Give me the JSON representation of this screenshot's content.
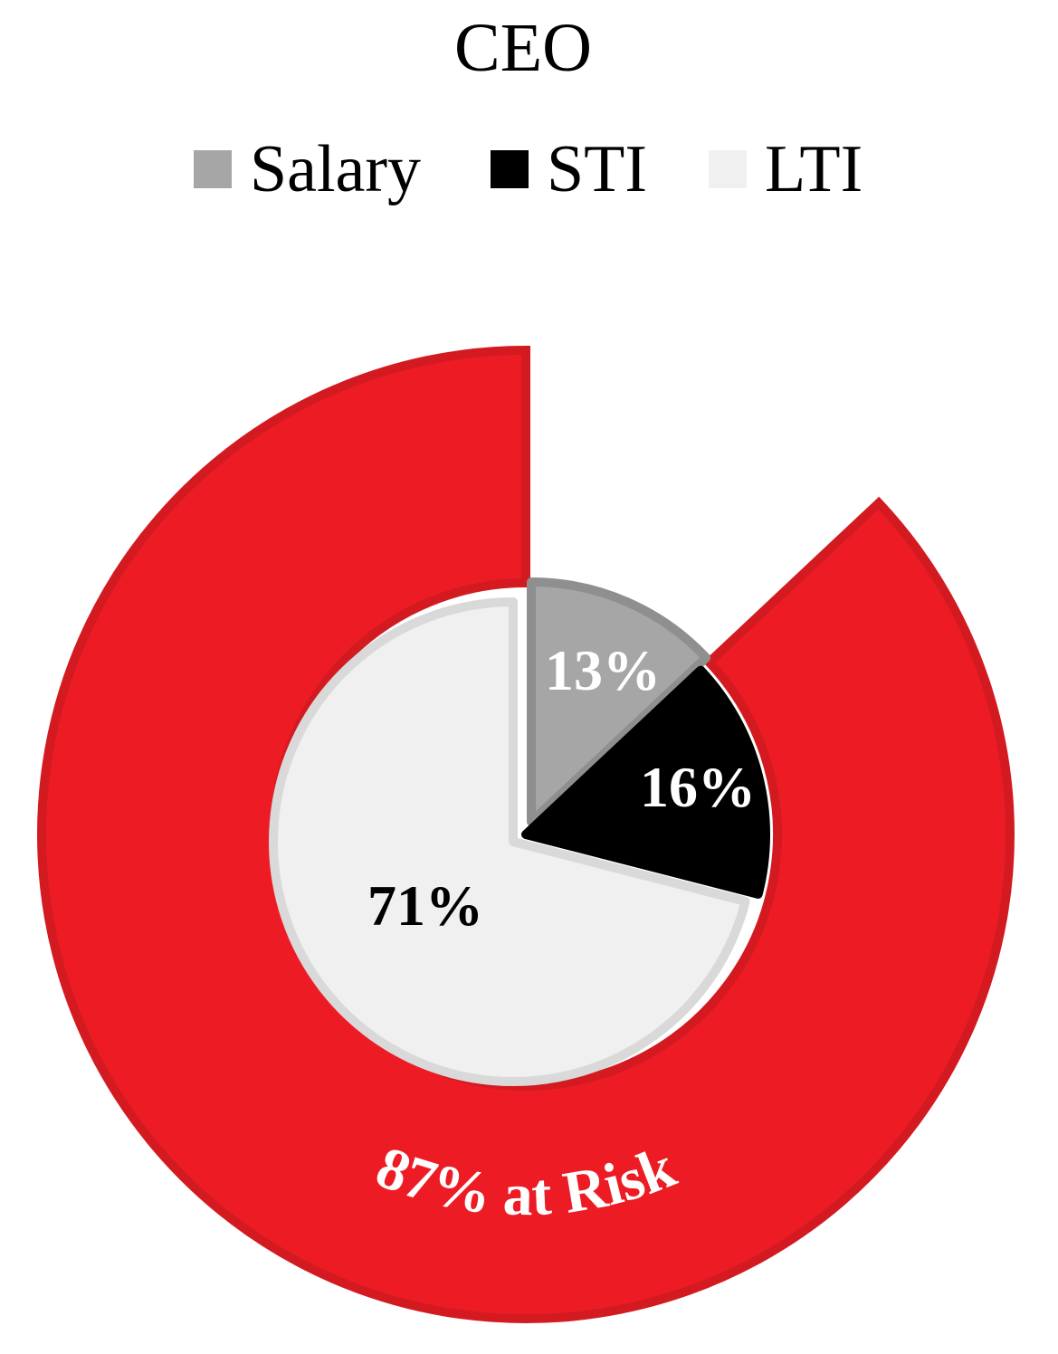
{
  "chart_data": {
    "type": "pie",
    "title": "CEO",
    "legend_position": "top",
    "series": [
      {
        "name": "",
        "categories": [
          "Salary",
          "STI",
          "LTI"
        ],
        "values": [
          13,
          16,
          71
        ],
        "labels": [
          "13%",
          "16%",
          "71%"
        ]
      }
    ],
    "at_risk": {
      "value": 87,
      "label": "87% at Risk",
      "categories": [
        "STI",
        "LTI"
      ]
    },
    "colors": {
      "Salary": "#a6a6a6",
      "STI": "#000000",
      "LTI": "#f0f0f0",
      "at_risk": "#ed1c24",
      "at_risk_border": "#d41a21"
    }
  }
}
